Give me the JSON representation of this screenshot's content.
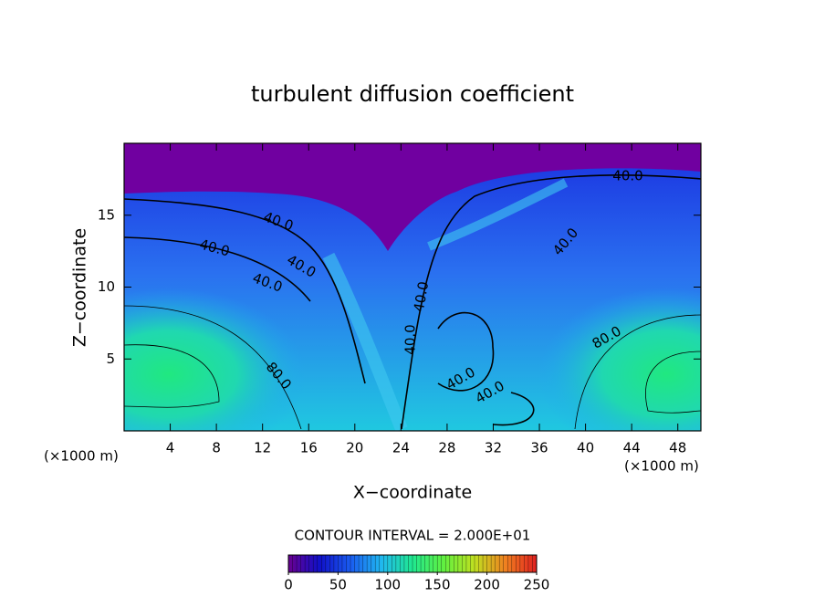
{
  "chart_data": {
    "type": "contour",
    "title": "turbulent diffusion coefficient",
    "xlabel": "X−coordinate",
    "ylabel": "Z−coordinate",
    "xunit": "(×1000 m)",
    "yunit": "(×1000 m)",
    "xlim": [
      0,
      50
    ],
    "ylim": [
      0,
      20
    ],
    "xticks": [
      4,
      8,
      12,
      16,
      20,
      24,
      28,
      32,
      36,
      40,
      44,
      48
    ],
    "yticks": [
      5,
      10,
      15
    ],
    "contour_labels": [
      "40.0",
      "40.0",
      "40.0",
      "40.0",
      "40.0",
      "40.0",
      "40.0",
      "40.0",
      "40.0",
      "40.0",
      "80.0",
      "80.0"
    ],
    "colorbar_title": "CONTOUR INTERVAL = 2.000E+01",
    "clim": [
      0,
      250
    ],
    "cticks": [
      0,
      50,
      100,
      150,
      200,
      250
    ],
    "colormap": [
      "#6a0090",
      "#1010c8",
      "#1a5cf0",
      "#20b8f0",
      "#20e890",
      "#60f040",
      "#c0e020",
      "#f08020",
      "#e02020"
    ]
  }
}
